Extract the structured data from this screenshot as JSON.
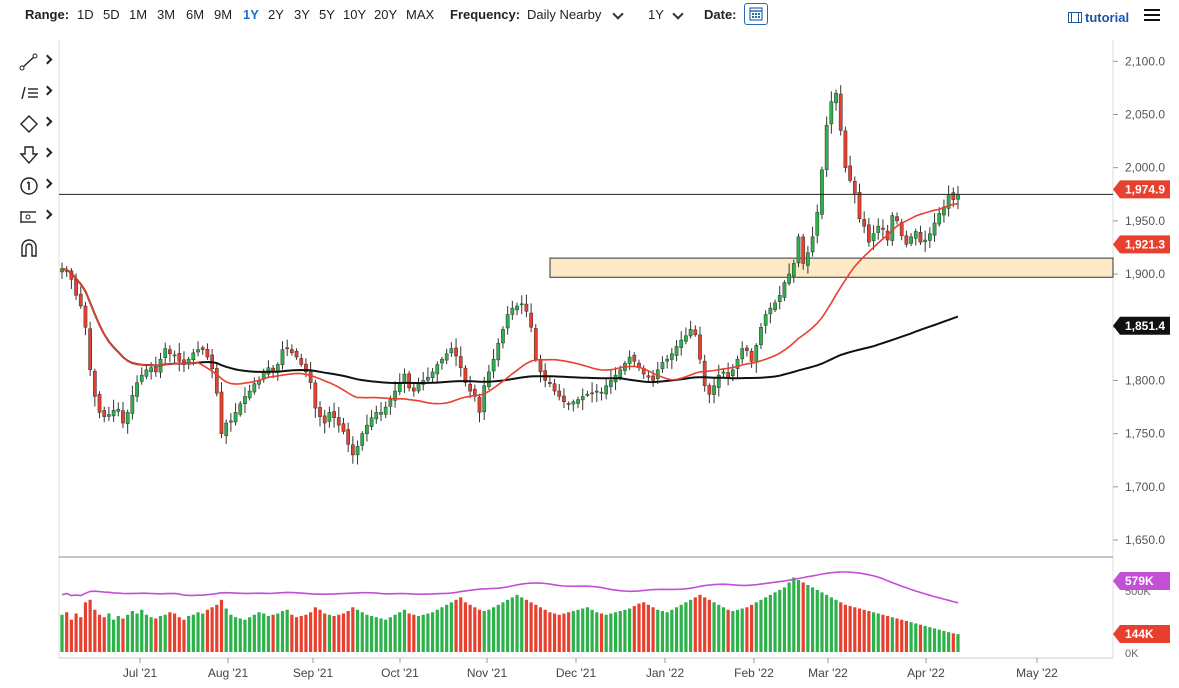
{
  "toolbar": {
    "range_label": "Range:",
    "ranges": [
      "1D",
      "5D",
      "1M",
      "3M",
      "6M",
      "9M",
      "1Y",
      "2Y",
      "3Y",
      "5Y",
      "10Y",
      "20Y",
      "MAX"
    ],
    "active_range": "1Y",
    "frequency_label": "Frequency:",
    "frequency_value": "Daily Nearby",
    "period_value": "1Y",
    "date_label": "Date:",
    "tutorial_label": "tutorial"
  },
  "sidebar_tools": [
    "line-tool-icon",
    "fib-tool-icon",
    "shape-tool-icon",
    "arrow-tool-icon",
    "annotation-tool-icon",
    "measure-tool-icon",
    "magnet-tool-icon"
  ],
  "colors": {
    "up": "#2db14a",
    "down": "#e8402e",
    "ma50": "#e8402e",
    "ma200": "#111111",
    "rsi": "#c24fd6",
    "zone_fill": "#fde9c6",
    "price_label": "#e8402e",
    "ma200_label": "#111111",
    "rsi_label": "#c24fd6"
  },
  "chart_data": {
    "type": "candlestick",
    "x_axis_ticks": [
      "Jul '21",
      "Aug '21",
      "Sep '21",
      "Oct '21",
      "Nov '21",
      "Dec '21",
      "Jan '22",
      "Feb '22",
      "Mar '22",
      "Apr '22",
      "May '22"
    ],
    "y_axis_ticks": [
      "2,100.0",
      "2,050.0",
      "2,000.0",
      "1,950.0",
      "1,900.0",
      "1,850.0",
      "1,800.0",
      "1,750.0",
      "1,700.0",
      "1,650.0"
    ],
    "ylim": [
      1635,
      2120
    ],
    "last_price": 1974.9,
    "last_price_label": "1,974.9",
    "ma50_last": 1921.3,
    "ma50_label": "1,921.3",
    "ma200_last": 1851.4,
    "ma200_label": "1,851.4",
    "support_zone": [
      1897,
      1915
    ],
    "volume_axis_ticks": [
      "500K",
      "0K"
    ],
    "volume_ma_label": "579K",
    "volume_last_label": "144K",
    "candles_daily_close": [
      1905,
      1903,
      1895,
      1880,
      1870,
      1850,
      1810,
      1785,
      1770,
      1766,
      1768,
      1772,
      1773,
      1760,
      1770,
      1786,
      1798,
      1805,
      1810,
      1812,
      1808,
      1820,
      1830,
      1825,
      1824,
      1818,
      1815,
      1820,
      1826,
      1829,
      1829,
      1822,
      1811,
      1788,
      1750,
      1760,
      1762,
      1770,
      1778,
      1785,
      1790,
      1797,
      1800,
      1808,
      1812,
      1808,
      1815,
      1829,
      1830,
      1826,
      1822,
      1815,
      1808,
      1798,
      1774,
      1766,
      1760,
      1770,
      1765,
      1758,
      1752,
      1740,
      1730,
      1738,
      1750,
      1758,
      1765,
      1770,
      1770,
      1775,
      1782,
      1790,
      1798,
      1806,
      1793,
      1790,
      1798,
      1800,
      1803,
      1808,
      1815,
      1820,
      1825,
      1830,
      1823,
      1812,
      1798,
      1790,
      1785,
      1770,
      1795,
      1808,
      1820,
      1835,
      1848,
      1862,
      1868,
      1870,
      1872,
      1865,
      1850,
      1820,
      1808,
      1800,
      1797,
      1790,
      1785,
      1780,
      1778,
      1780,
      1782,
      1785,
      1787,
      1788,
      1790,
      1789,
      1795,
      1800,
      1805,
      1810,
      1816,
      1822,
      1818,
      1812,
      1806,
      1803,
      1800,
      1810,
      1817,
      1820,
      1825,
      1832,
      1838,
      1842,
      1848,
      1843,
      1820,
      1795,
      1787,
      1795,
      1805,
      1808,
      1803,
      1810,
      1820,
      1830,
      1828,
      1818,
      1833,
      1850,
      1862,
      1868,
      1873,
      1880,
      1892,
      1900,
      1910,
      1935,
      1910,
      1920,
      1935,
      1958,
      1998,
      2040,
      2062,
      2070,
      2035,
      2000,
      1988,
      1975,
      1952,
      1945,
      1930,
      1938,
      1945,
      1942,
      1932,
      1955,
      1950,
      1936,
      1928,
      1935,
      1940,
      1930,
      1932,
      1938,
      1948,
      1957,
      1963,
      1975,
      1970,
      1974.9
    ],
    "volume_values": [
      300,
      320,
      260,
      310,
      280,
      400,
      420,
      340,
      300,
      280,
      310,
      260,
      290,
      270,
      300,
      330,
      310,
      340,
      300,
      280,
      270,
      290,
      300,
      320,
      310,
      280,
      260,
      290,
      300,
      320,
      310,
      340,
      360,
      380,
      420,
      350,
      300,
      280,
      270,
      260,
      280,
      300,
      320,
      310,
      290,
      300,
      310,
      330,
      340,
      300,
      280,
      290,
      300,
      320,
      360,
      340,
      310,
      300,
      290,
      300,
      310,
      330,
      360,
      340,
      320,
      300,
      290,
      280,
      270,
      260,
      280,
      300,
      320,
      340,
      310,
      300,
      290,
      300,
      310,
      320,
      340,
      360,
      380,
      400,
      420,
      440,
      400,
      380,
      360,
      340,
      330,
      340,
      360,
      380,
      400,
      420,
      440,
      460,
      440,
      420,
      400,
      380,
      360,
      340,
      320,
      310,
      300,
      310,
      320,
      330,
      340,
      350,
      360,
      340,
      320,
      310,
      300,
      310,
      320,
      330,
      340,
      350,
      370,
      390,
      400,
      380,
      360,
      340,
      330,
      320,
      340,
      360,
      380,
      400,
      420,
      440,
      460,
      440,
      420,
      400,
      380,
      360,
      340,
      330,
      340,
      350,
      360,
      380,
      400,
      420,
      440,
      460,
      480,
      500,
      520,
      560,
      600,
      580,
      560,
      540,
      520,
      500,
      480,
      460,
      440,
      420,
      400,
      380,
      370,
      360,
      350,
      340,
      330,
      320,
      310,
      300,
      290,
      280,
      270,
      260,
      250,
      240,
      230,
      220,
      210,
      200,
      190,
      180,
      170,
      160,
      150,
      144
    ]
  }
}
